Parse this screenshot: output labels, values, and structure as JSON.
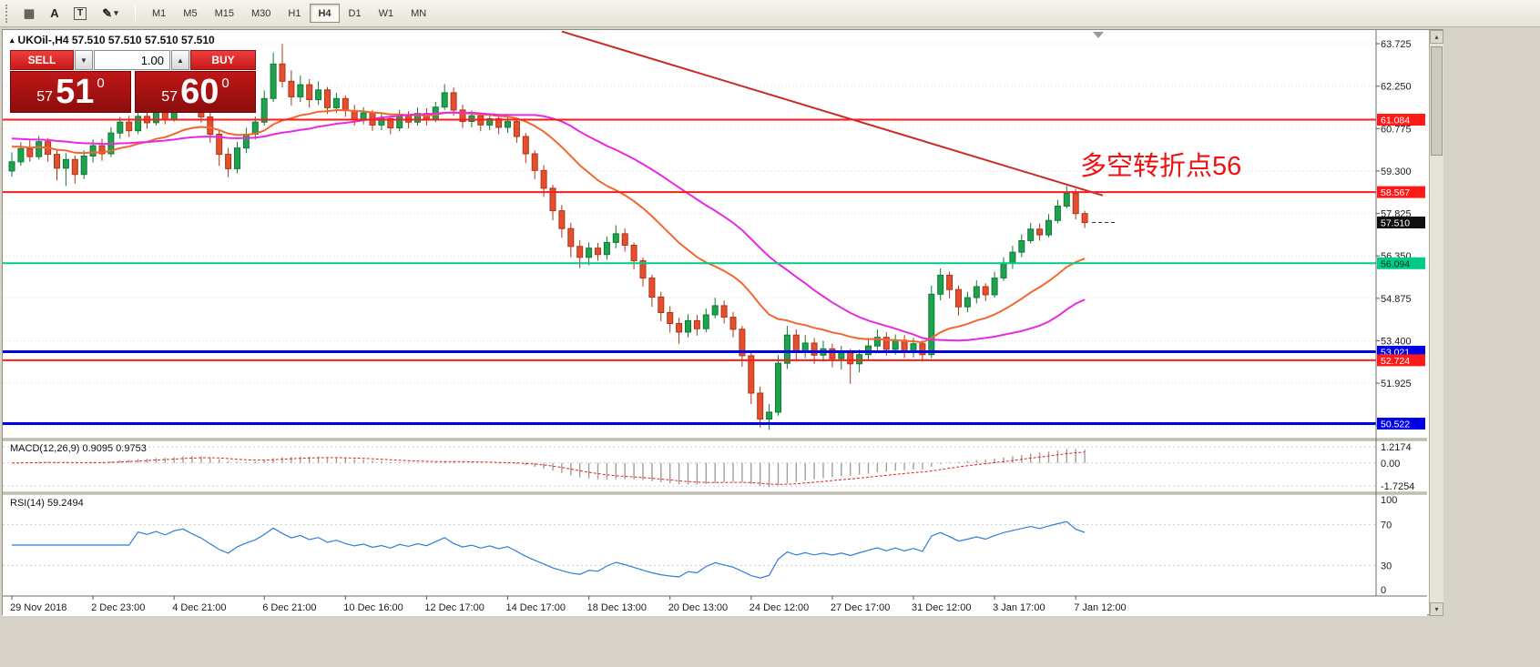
{
  "toolbar": {
    "tools": {
      "a_label": "A",
      "t_label": "T"
    },
    "timeframes": [
      "M1",
      "M5",
      "M15",
      "M30",
      "H1",
      "H4",
      "D1",
      "W1",
      "MN"
    ],
    "active_timeframe": "H4"
  },
  "trade_panel": {
    "sell_label": "SELL",
    "buy_label": "BUY",
    "volume": "1.00",
    "bid": {
      "small": "57",
      "big": "51",
      "sup": "0"
    },
    "ask": {
      "small": "57",
      "big": "60",
      "sup": "0"
    }
  },
  "chart": {
    "header": "UKOil-,H4  57.510 57.510 57.510 57.510",
    "annotation": {
      "text": "多空转折点56",
      "color": "#F01010"
    }
  },
  "chart_data": {
    "type": "candlestick+indicators",
    "symbol": "UKOil-",
    "timeframe": "H4",
    "bar_spacing": 9.9,
    "ohlc_format": "[open,high,low,close]",
    "ohlc": [
      [
        59.3,
        59.95,
        59.1,
        59.62
      ],
      [
        59.62,
        60.3,
        59.48,
        60.08
      ],
      [
        60.08,
        60.42,
        59.62,
        59.8
      ],
      [
        59.8,
        60.52,
        59.7,
        60.32
      ],
      [
        60.32,
        60.45,
        59.62,
        59.88
      ],
      [
        59.88,
        60.02,
        58.98,
        59.4
      ],
      [
        59.4,
        59.92,
        58.78,
        59.7
      ],
      [
        59.7,
        59.84,
        58.86,
        59.18
      ],
      [
        59.18,
        60.02,
        59.02,
        59.82
      ],
      [
        59.82,
        60.4,
        59.6,
        60.18
      ],
      [
        60.18,
        60.42,
        59.66,
        59.9
      ],
      [
        59.9,
        60.82,
        59.78,
        60.62
      ],
      [
        60.62,
        61.18,
        60.42,
        61.0
      ],
      [
        61.0,
        61.22,
        60.48,
        60.7
      ],
      [
        60.7,
        61.42,
        60.58,
        61.2
      ],
      [
        61.2,
        61.4,
        60.78,
        60.98
      ],
      [
        60.98,
        61.62,
        60.88,
        61.42
      ],
      [
        61.42,
        61.6,
        60.92,
        61.1
      ],
      [
        61.1,
        61.92,
        61.02,
        61.72
      ],
      [
        61.72,
        62.22,
        61.52,
        62.02
      ],
      [
        62.02,
        62.12,
        61.4,
        61.58
      ],
      [
        61.58,
        61.8,
        60.98,
        61.18
      ],
      [
        61.18,
        61.32,
        60.28,
        60.58
      ],
      [
        60.58,
        60.7,
        59.48,
        59.88
      ],
      [
        59.88,
        60.1,
        59.08,
        59.38
      ],
      [
        59.38,
        60.32,
        59.22,
        60.1
      ],
      [
        60.1,
        60.8,
        59.92,
        60.58
      ],
      [
        60.58,
        61.2,
        60.4,
        61.0
      ],
      [
        61.0,
        62.1,
        60.88,
        61.82
      ],
      [
        61.82,
        63.42,
        61.7,
        63.02
      ],
      [
        63.02,
        63.72,
        62.2,
        62.42
      ],
      [
        62.42,
        62.8,
        61.58,
        61.88
      ],
      [
        61.88,
        62.62,
        61.7,
        62.3
      ],
      [
        62.3,
        62.5,
        61.5,
        61.78
      ],
      [
        61.78,
        62.42,
        61.6,
        62.12
      ],
      [
        62.12,
        62.22,
        61.28,
        61.5
      ],
      [
        61.5,
        62.02,
        61.32,
        61.82
      ],
      [
        61.82,
        61.92,
        61.18,
        61.4
      ],
      [
        61.4,
        61.6,
        60.88,
        61.08
      ],
      [
        61.08,
        61.52,
        60.92,
        61.32
      ],
      [
        61.32,
        61.42,
        60.7,
        60.9
      ],
      [
        60.9,
        61.32,
        60.72,
        61.12
      ],
      [
        61.12,
        61.22,
        60.58,
        60.8
      ],
      [
        60.8,
        61.42,
        60.68,
        61.22
      ],
      [
        61.22,
        61.38,
        60.78,
        61.0
      ],
      [
        61.0,
        61.5,
        60.88,
        61.3
      ],
      [
        61.3,
        61.48,
        60.88,
        61.08
      ],
      [
        61.08,
        61.7,
        61.0,
        61.52
      ],
      [
        61.52,
        62.32,
        61.42,
        62.02
      ],
      [
        62.02,
        62.2,
        61.22,
        61.42
      ],
      [
        61.42,
        61.6,
        60.8,
        61.02
      ],
      [
        61.02,
        61.4,
        60.82,
        61.22
      ],
      [
        61.22,
        61.32,
        60.68,
        60.9
      ],
      [
        60.9,
        61.3,
        60.72,
        61.12
      ],
      [
        61.12,
        61.22,
        60.58,
        60.82
      ],
      [
        60.82,
        61.2,
        60.62,
        61.02
      ],
      [
        61.02,
        61.1,
        60.28,
        60.5
      ],
      [
        60.5,
        60.62,
        59.58,
        59.9
      ],
      [
        59.9,
        60.02,
        59.02,
        59.32
      ],
      [
        59.32,
        59.5,
        58.4,
        58.7
      ],
      [
        58.7,
        58.82,
        57.58,
        57.92
      ],
      [
        57.92,
        58.12,
        56.98,
        57.3
      ],
      [
        57.3,
        57.5,
        56.3,
        56.68
      ],
      [
        56.68,
        56.9,
        55.92,
        56.3
      ],
      [
        56.3,
        56.82,
        56.02,
        56.62
      ],
      [
        56.62,
        56.8,
        56.18,
        56.4
      ],
      [
        56.4,
        57.02,
        56.22,
        56.82
      ],
      [
        56.82,
        57.42,
        56.62,
        57.12
      ],
      [
        57.12,
        57.3,
        56.5,
        56.72
      ],
      [
        56.72,
        56.82,
        55.88,
        56.18
      ],
      [
        56.18,
        56.3,
        55.28,
        55.58
      ],
      [
        55.58,
        55.7,
        54.58,
        54.92
      ],
      [
        54.92,
        55.1,
        54.08,
        54.38
      ],
      [
        54.38,
        54.6,
        53.68,
        54.0
      ],
      [
        54.0,
        54.2,
        53.3,
        53.7
      ],
      [
        53.7,
        54.32,
        53.52,
        54.1
      ],
      [
        54.1,
        54.3,
        53.58,
        53.82
      ],
      [
        53.82,
        54.52,
        53.7,
        54.3
      ],
      [
        54.3,
        54.9,
        54.18,
        54.62
      ],
      [
        54.62,
        54.8,
        54.0,
        54.22
      ],
      [
        54.22,
        54.4,
        53.52,
        53.8
      ],
      [
        53.8,
        53.92,
        52.5,
        52.88
      ],
      [
        52.88,
        53.0,
        51.2,
        51.58
      ],
      [
        51.58,
        51.8,
        50.38,
        50.68
      ],
      [
        50.68,
        51.2,
        50.3,
        50.92
      ],
      [
        50.92,
        52.9,
        50.8,
        52.62
      ],
      [
        52.62,
        53.92,
        52.42,
        53.6
      ],
      [
        53.6,
        53.8,
        52.68,
        53.0
      ],
      [
        53.0,
        53.6,
        52.8,
        53.32
      ],
      [
        53.32,
        53.5,
        52.6,
        52.9
      ],
      [
        52.9,
        53.4,
        52.68,
        53.12
      ],
      [
        53.12,
        53.3,
        52.48,
        52.78
      ],
      [
        52.78,
        53.22,
        52.4,
        53.02
      ],
      [
        53.02,
        53.12,
        51.9,
        52.6
      ],
      [
        52.6,
        53.1,
        52.3,
        52.92
      ],
      [
        52.92,
        53.5,
        52.7,
        53.22
      ],
      [
        53.22,
        53.8,
        53.02,
        53.52
      ],
      [
        53.52,
        53.7,
        52.88,
        53.1
      ],
      [
        53.1,
        53.62,
        52.92,
        53.42
      ],
      [
        53.42,
        53.6,
        52.8,
        53.02
      ],
      [
        53.02,
        53.5,
        52.82,
        53.3
      ],
      [
        53.3,
        53.42,
        52.68,
        52.92
      ],
      [
        52.92,
        55.32,
        52.8,
        55.02
      ],
      [
        55.02,
        55.92,
        54.8,
        55.68
      ],
      [
        55.68,
        55.8,
        54.88,
        55.18
      ],
      [
        55.18,
        55.32,
        54.28,
        54.58
      ],
      [
        54.58,
        55.1,
        54.4,
        54.9
      ],
      [
        54.9,
        55.5,
        54.7,
        55.28
      ],
      [
        55.28,
        55.4,
        54.78,
        55.0
      ],
      [
        55.0,
        55.8,
        54.9,
        55.58
      ],
      [
        55.58,
        56.3,
        55.48,
        56.1
      ],
      [
        56.1,
        56.7,
        55.9,
        56.48
      ],
      [
        56.48,
        57.1,
        56.3,
        56.88
      ],
      [
        56.88,
        57.5,
        56.78,
        57.28
      ],
      [
        57.28,
        57.48,
        56.88,
        57.08
      ],
      [
        57.08,
        57.8,
        57.0,
        57.58
      ],
      [
        57.58,
        58.3,
        57.48,
        58.08
      ],
      [
        58.08,
        58.78,
        58.0,
        58.52
      ],
      [
        58.52,
        58.68,
        57.62,
        57.82
      ],
      [
        57.82,
        57.92,
        57.32,
        57.51
      ]
    ],
    "time_labels": [
      {
        "i": 0,
        "label": "29 Nov 2018"
      },
      {
        "i": 9,
        "label": "2 Dec 23:00"
      },
      {
        "i": 18,
        "label": "4 Dec 21:00"
      },
      {
        "i": 28,
        "label": "6 Dec 21:00"
      },
      {
        "i": 37,
        "label": "10 Dec 16:00"
      },
      {
        "i": 46,
        "label": "12 Dec 17:00"
      },
      {
        "i": 55,
        "label": "14 Dec 17:00"
      },
      {
        "i": 64,
        "label": "18 Dec 13:00"
      },
      {
        "i": 73,
        "label": "20 Dec 13:00"
      },
      {
        "i": 82,
        "label": "24 Dec 12:00"
      },
      {
        "i": 91,
        "label": "27 Dec 17:00"
      },
      {
        "i": 100,
        "label": "31 Dec 12:00"
      },
      {
        "i": 109,
        "label": "3 Jan 17:00"
      },
      {
        "i": 118,
        "label": "7 Jan 12:00"
      }
    ],
    "y_axis": {
      "min": 50.0,
      "max": 64.2,
      "ticks": [
        63.725,
        62.25,
        60.775,
        59.3,
        57.825,
        56.35,
        54.875,
        53.4,
        51.925,
        50.45
      ]
    },
    "hlines": [
      {
        "value": 61.084,
        "color": "#FF1A1A",
        "width": 2,
        "text_color": "#ffffff"
      },
      {
        "value": 58.567,
        "color": "#FF1A1A",
        "width": 2,
        "text_color": "#ffffff"
      },
      {
        "value": 56.094,
        "color": "#00CC88",
        "width": 2,
        "text_color": "#00331d"
      },
      {
        "value": 53.021,
        "color": "#0000E6",
        "width": 3,
        "text_color": "#ffffff"
      },
      {
        "value": 52.724,
        "color": "#FF1A1A",
        "width": 2,
        "text_color": "#ffffff"
      },
      {
        "value": 50.522,
        "color": "#0000E6",
        "width": 3,
        "text_color": "#ffffff"
      }
    ],
    "current_price": {
      "value": 57.51,
      "label": "57.510"
    },
    "trendline": {
      "i1": 61,
      "p1": 64.15,
      "i2": 121,
      "p2": 58.45,
      "color": "#C92A2A",
      "width": 2
    },
    "ma": [
      {
        "type": "ema",
        "period": 21,
        "seed": 60.2,
        "color": "#F2672F",
        "width": 2
      },
      {
        "type": "sma",
        "period": 34,
        "seed": 60.45,
        "color": "#E829E0",
        "width": 2
      }
    ],
    "macd": {
      "label": "MACD(12,26,9) 0.9095 0.9753",
      "fast": 12,
      "slow": 26,
      "signal": 9,
      "range": [
        1.7,
        -2.2
      ],
      "ticks": [
        {
          "v": 1.2174,
          "label": "1.2174"
        },
        {
          "v": 0,
          "label": "0.00"
        },
        {
          "v": -1.7254,
          "label": "-1.7254"
        }
      ]
    },
    "rsi": {
      "label": "RSI(14) 59.2494",
      "period": 14,
      "ticks": [
        {
          "v": 100,
          "label": "100",
          "dashed": false
        },
        {
          "v": 70,
          "label": "70",
          "dashed": true
        },
        {
          "v": 30,
          "label": "30",
          "dashed": true
        },
        {
          "v": 0,
          "label": "0",
          "dashed": false
        }
      ]
    },
    "colors": {
      "up": "#1FA24E",
      "up_border": "#0E7A36",
      "down": "#E4502E",
      "down_border": "#B03418",
      "macd_hist": "#9E9E9E",
      "macd_signal": "#D92626",
      "rsi": "#2F7ED8",
      "grid": "#DEDEDE"
    }
  }
}
